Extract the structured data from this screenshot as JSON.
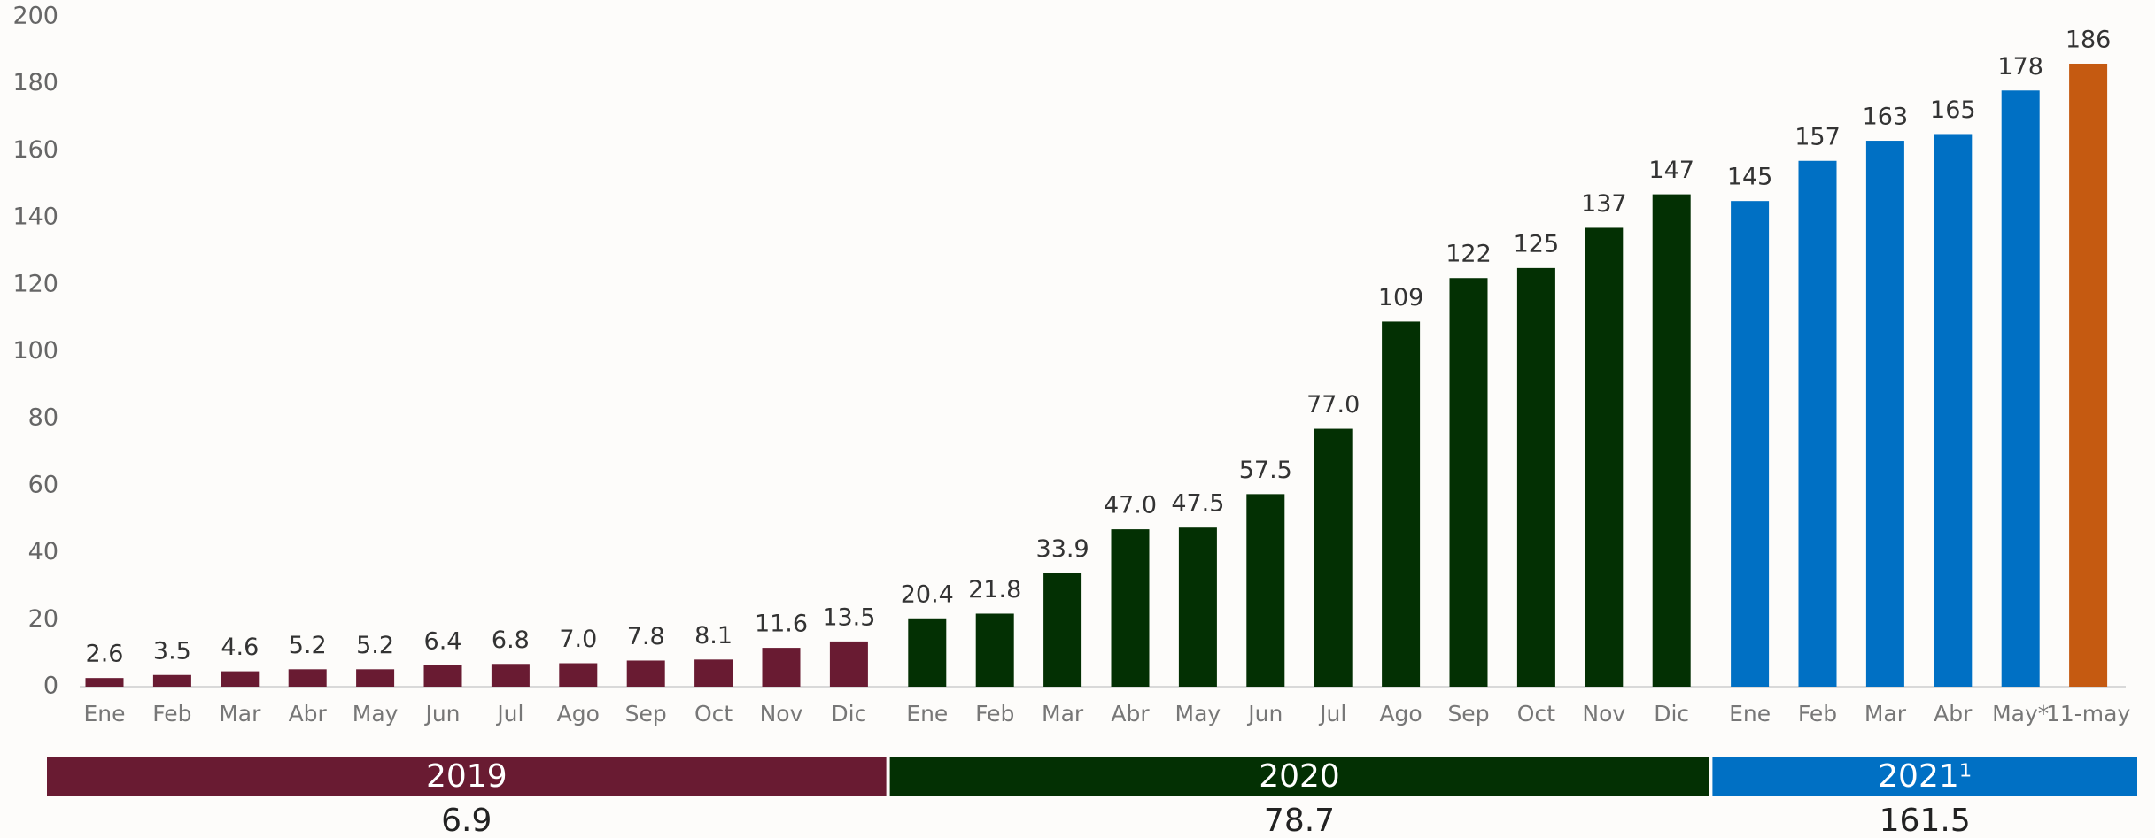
{
  "chart_data": {
    "type": "bar",
    "ylim": [
      0,
      200
    ],
    "yticks": [
      0,
      20,
      40,
      60,
      80,
      100,
      120,
      140,
      160,
      180,
      200
    ],
    "groups": [
      {
        "label": "2019",
        "summary": "6.9",
        "color": "#691b32",
        "categories": [
          "Ene",
          "Feb",
          "Mar",
          "Abr",
          "May",
          "Jun",
          "Jul",
          "Ago",
          "Sep",
          "Oct",
          "Nov",
          "Dic"
        ],
        "values": [
          2.6,
          3.5,
          4.6,
          5.2,
          5.2,
          6.4,
          6.8,
          7.0,
          7.8,
          8.1,
          11.6,
          13.5
        ],
        "value_labels": [
          "2.6",
          "3.5",
          "4.6",
          "5.2",
          "5.2",
          "6.4",
          "6.8",
          "7.0",
          "7.8",
          "8.1",
          "11.6",
          "13.5"
        ],
        "colors": [
          "#691b32",
          "#691b32",
          "#691b32",
          "#691b32",
          "#691b32",
          "#691b32",
          "#691b32",
          "#691b32",
          "#691b32",
          "#691b32",
          "#691b32",
          "#691b32"
        ]
      },
      {
        "label": "2020",
        "summary": "78.7",
        "color": "#033003",
        "categories": [
          "Ene",
          "Feb",
          "Mar",
          "Abr",
          "May",
          "Jun",
          "Jul",
          "Ago",
          "Sep",
          "Oct",
          "Nov",
          "Dic"
        ],
        "values": [
          20.4,
          21.8,
          33.9,
          47.0,
          47.5,
          57.5,
          77.0,
          109,
          122,
          125,
          137,
          147
        ],
        "value_labels": [
          "20.4",
          "21.8",
          "33.9",
          "47.0",
          "47.5",
          "57.5",
          "77.0",
          "109",
          "122",
          "125",
          "137",
          "147"
        ],
        "colors": [
          "#033003",
          "#033003",
          "#033003",
          "#033003",
          "#033003",
          "#033003",
          "#033003",
          "#033003",
          "#033003",
          "#033003",
          "#033003",
          "#033003"
        ]
      },
      {
        "label": "2021¹",
        "summary": "161.5",
        "color": "#0070c4",
        "categories": [
          "Ene",
          "Feb",
          "Mar",
          "Abr",
          "May*",
          "11-may"
        ],
        "values": [
          145,
          157,
          163,
          165,
          178,
          186
        ],
        "value_labels": [
          "145",
          "157",
          "163",
          "165",
          "178",
          "186"
        ],
        "colors": [
          "#0070c4",
          "#0070c4",
          "#0070c4",
          "#0070c4",
          "#0070c4",
          "#c55a11"
        ]
      }
    ]
  }
}
